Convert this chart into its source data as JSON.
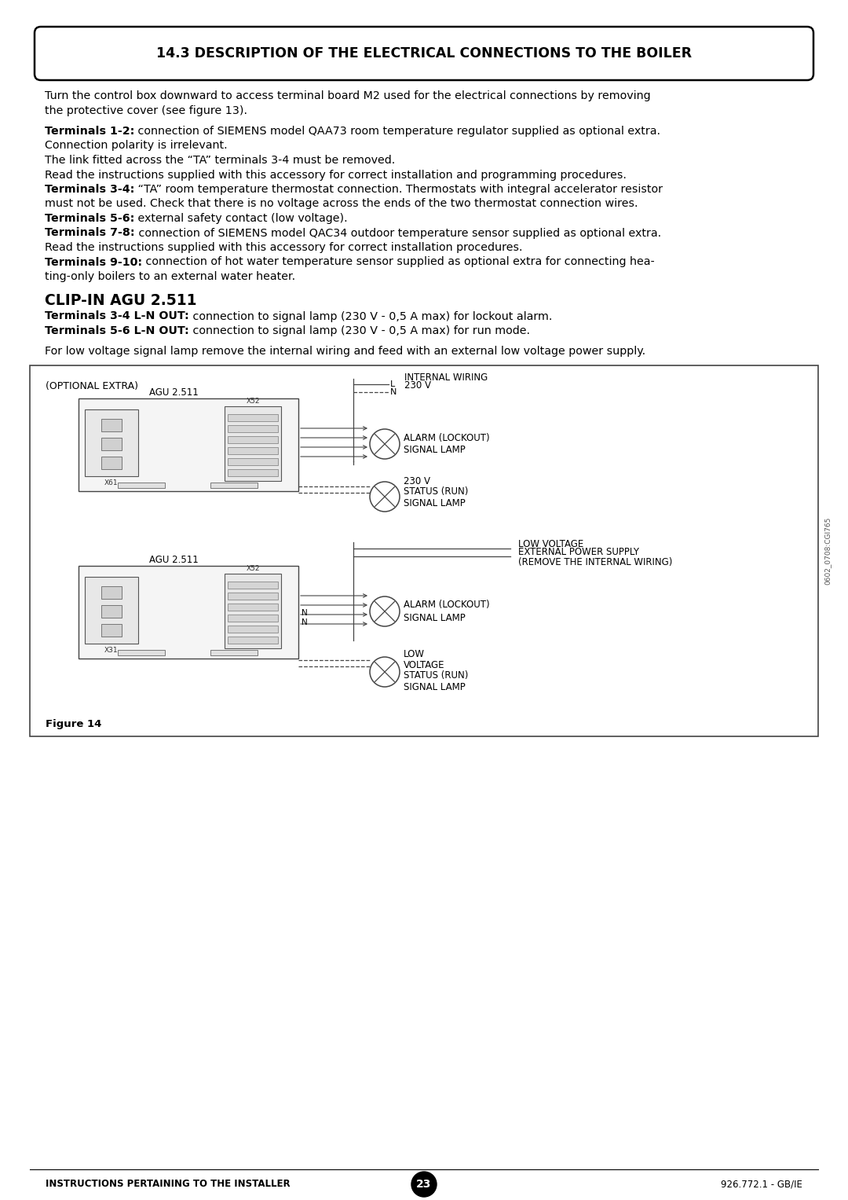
{
  "title": "14.3 DESCRIPTION OF THE ELECTRICAL CONNECTIONS TO THE BOILER",
  "bg_color": "#ffffff",
  "page_number": "23",
  "footer_left": "INSTRUCTIONS PERTAINING TO THE INSTALLER",
  "footer_right": "926.772.1 - GB/IE",
  "figure_label": "Figure 14",
  "sidebar_text": "0602_0708:CGI765"
}
